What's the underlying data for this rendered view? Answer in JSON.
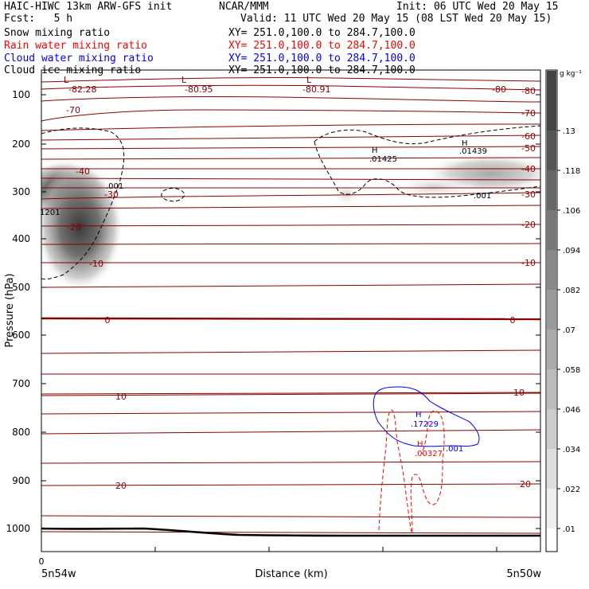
{
  "header": {
    "left": [
      "HAIC-HIWC 13km ARW-GFS init",
      "Fcst:   5 h"
    ],
    "center": "NCAR/MMM",
    "init": "Init: 06 UTC Wed 20 May 15",
    "valid": "Valid: 11 UTC Wed 20 May 15 (08 LST Wed 20 May 15)"
  },
  "fields": [
    {
      "name": "Snow mixing ratio",
      "xy": "XY= 251.0,100.0 to 284.7,100.0",
      "color": "#000000"
    },
    {
      "name": "Rain water mixing ratio",
      "xy": "XY= 251.0,100.0 to 284.7,100.0",
      "color": "#ff0000"
    },
    {
      "name": "Cloud water mixing ratio",
      "xy": "XY= 251.0,100.0 to 284.7,100.0",
      "color": "#0000ff"
    },
    {
      "name": "Cloud ice mixing ratio",
      "xy": "XY= 251.0,100.0 to 284.7,100.0",
      "color": "#000000"
    }
  ],
  "chart_data": {
    "type": "heatmap",
    "ylabel": "Pressure (hPa)",
    "xlabel": "Distance (km)",
    "y_ticks": [
      "100",
      "200",
      "300",
      "400",
      "500",
      "600",
      "700",
      "800",
      "900",
      "1000"
    ],
    "ylim": [
      50,
      1050
    ],
    "x_start_label": "0",
    "x_left_label": "5n54w",
    "x_right_label": "5n50w",
    "colorbar": {
      "unit": "g kg⁻¹",
      "levels": [
        ".13",
        ".118",
        ".106",
        ".094",
        ".082",
        ".07",
        ".058",
        ".046",
        ".034",
        ".022",
        ".01"
      ]
    },
    "isotherm_labels": {
      "left": [
        "-70",
        "-40",
        "-30",
        "-20",
        "-10",
        "0",
        "10",
        "20"
      ],
      "right": [
        "-80",
        "-80",
        "-70",
        "-60",
        "-50",
        "-40",
        "-30",
        "-20",
        "-10",
        "0",
        "10",
        "20"
      ]
    },
    "low_values": [
      "-82.28",
      "-80.95",
      "-80.91"
    ],
    "low_marker": "L",
    "high_marker": "H",
    "snow_labels": [
      ".001",
      ".01439",
      ".01425",
      ".001"
    ],
    "snow_max_partial": "1201",
    "cloud_water": {
      "max": ".17229",
      "contour": ".001"
    },
    "rain_water": {
      "max": ".00327"
    },
    "colors": {
      "isotherm": "#8b0000",
      "snow": "#000000",
      "rain": "#ff0000",
      "cloud_water": "#0000ff",
      "shade_max": "#444444"
    }
  }
}
